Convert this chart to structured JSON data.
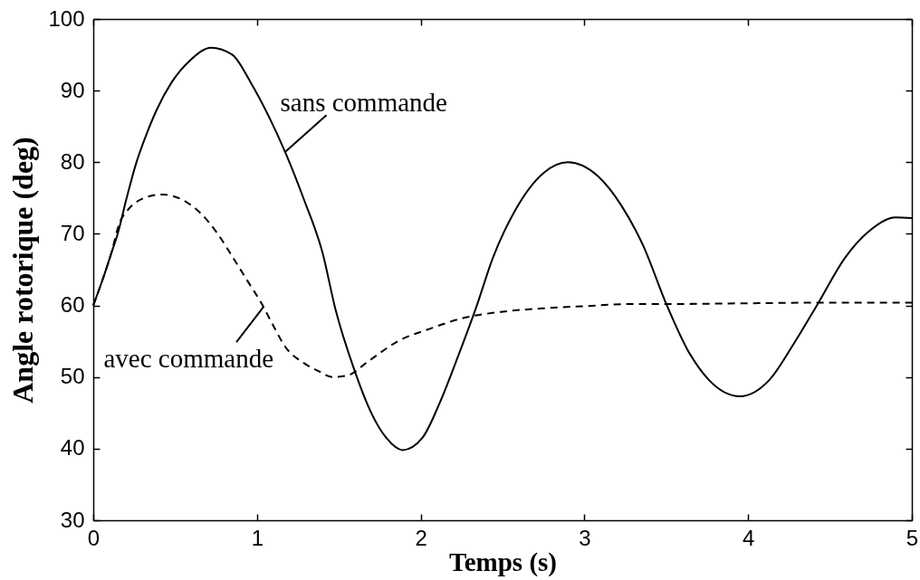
{
  "chart_data": {
    "type": "line",
    "xlabel": "Temps (s)",
    "ylabel": "Angle rotorique (deg)",
    "xlim": [
      0,
      5
    ],
    "ylim": [
      30,
      100
    ],
    "xticks": [
      0,
      1,
      2,
      3,
      4,
      5
    ],
    "yticks": [
      30,
      40,
      50,
      60,
      70,
      80,
      90,
      100
    ],
    "series": [
      {
        "color": "#000000",
        "line_style": "solid",
        "x": [
          0,
          0.06,
          0.112,
          0.149,
          0.205,
          0.26,
          0.32,
          0.389,
          0.48,
          0.59,
          0.72,
          0.85,
          0.96,
          1.07,
          1.18,
          1.29,
          1.4,
          1.48,
          1.59,
          1.7,
          1.79,
          1.89,
          2.01,
          2.12,
          2.23,
          2.34,
          2.44,
          2.57,
          2.75,
          2.9,
          3.08,
          3.23,
          3.36,
          3.5,
          3.63,
          3.76,
          3.95,
          4.13,
          4.28,
          4.43,
          4.59,
          4.74,
          4.9,
          5.0
        ],
        "values": [
          60,
          63.8,
          67.4,
          70.0,
          75.1,
          79.7,
          83.6,
          87.4,
          91.2,
          94.2,
          96.0,
          95.0,
          91.2,
          86.5,
          81.0,
          74.6,
          67.4,
          59.4,
          51.3,
          44.9,
          41.5,
          39.8,
          41.5,
          46.6,
          53.0,
          59.8,
          66.6,
          73.0,
          78.5,
          80.0,
          78.1,
          73.8,
          68.3,
          60.2,
          53.8,
          49.6,
          47.3,
          49.6,
          54.7,
          60.4,
          66.6,
          70.4,
          72.3,
          72.2
        ]
      },
      {
        "color": "#000000",
        "line_style": "dashed",
        "x": [
          0,
          0.06,
          0.11,
          0.16,
          0.21,
          0.3,
          0.42,
          0.54,
          0.65,
          0.76,
          0.85,
          0.94,
          1.03,
          1.09,
          1.18,
          1.27,
          1.37,
          1.46,
          1.55,
          1.68,
          1.86,
          2.05,
          2.27,
          2.49,
          2.75,
          3.0,
          3.28,
          3.5,
          4.0,
          4.5,
          5.0
        ],
        "values": [
          60,
          63.8,
          67.3,
          71.5,
          73.3,
          74.9,
          75.5,
          74.8,
          73.0,
          70.0,
          66.8,
          63.5,
          60.2,
          57.6,
          54.0,
          52.2,
          50.9,
          50.0,
          50.2,
          52.2,
          55.0,
          56.7,
          58.3,
          59.1,
          59.6,
          59.9,
          60.2,
          60.2,
          60.3,
          60.4,
          60.4
        ]
      }
    ],
    "annotations": [
      {
        "text": "sans commande",
        "x": 1.17,
        "y": 81.4
      },
      {
        "text": "avec commande",
        "x": 1.04,
        "y": 59.8
      }
    ]
  }
}
